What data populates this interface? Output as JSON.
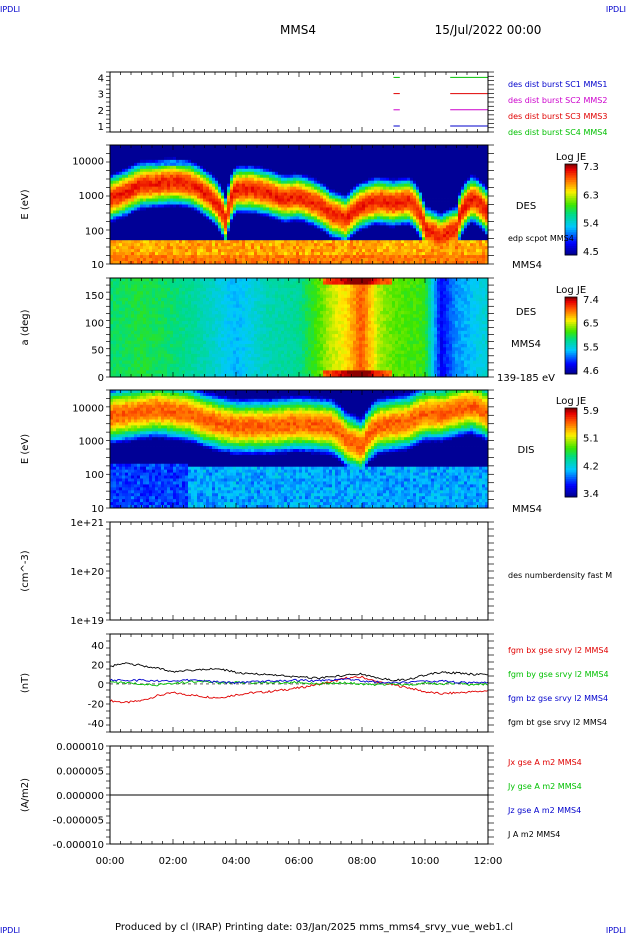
{
  "header": {
    "left_logo": "IPDLI",
    "right_logo": "IPDLI",
    "spacecraft": "MMS4",
    "date": "15/Jul/2022 00:00"
  },
  "footer": {
    "text": "Produced by cl (IRAP)   Printing date: 03/Jan/2025   mms_mms4_srvy_vue_web1.cl",
    "left_logo": "IPDLI",
    "right_logo": "IPDLI"
  },
  "colors": {
    "red": "#e00000",
    "green": "#00c000",
    "blue": "#0000cc",
    "magenta": "#cc00cc",
    "black": "#000000"
  },
  "panels": {
    "burst": {
      "yticks": [
        "4",
        "3",
        "2",
        "1"
      ],
      "legend": [
        {
          "text": "des dist burst SC1 MMS1",
          "color": "#0000cc"
        },
        {
          "text": "des dist burst SC2 MMS2",
          "color": "#cc00cc"
        },
        {
          "text": "des dist burst SC3 MMS3",
          "color": "#e00000"
        },
        {
          "text": "des dist burst SC4 MMS4",
          "color": "#00c000"
        }
      ]
    },
    "des_energy": {
      "ylabel": "E (eV)",
      "yticks": [
        "10000",
        "1000",
        "100",
        "10"
      ],
      "right_labels": [
        "DES",
        "edp scpot MMS4",
        "MMS4"
      ],
      "cbar_title": "Log JE",
      "cbar_ticks": [
        "7.3",
        "6.3",
        "5.4",
        "4.5"
      ]
    },
    "des_pitch": {
      "ylabel": "a (deg)",
      "yticks": [
        "150",
        "100",
        "50",
        "0"
      ],
      "right_labels": [
        "DES",
        "MMS4",
        "139-185 eV"
      ],
      "cbar_title": "Log JE",
      "cbar_ticks": [
        "7.4",
        "6.5",
        "5.5",
        "4.6"
      ]
    },
    "dis_energy": {
      "ylabel": "E (eV)",
      "yticks": [
        "10000",
        "1000",
        "100",
        "10"
      ],
      "right_labels": [
        "DIS",
        "MMS4"
      ],
      "cbar_title": "Log JE",
      "cbar_ticks": [
        "5.9",
        "5.1",
        "4.2",
        "3.4"
      ]
    },
    "density": {
      "ylabel": "(cm^-3)",
      "yticks": [
        "1e+21",
        "1e+20",
        "1e+19"
      ],
      "right_label": "des numberdensity fast M"
    },
    "fgm": {
      "ylabel": "(nT)",
      "yticks": [
        "40",
        "20",
        "0",
        "-20",
        "-40"
      ],
      "legend": [
        {
          "text": "fgm bx gse srvy l2 MMS4",
          "color": "#e00000"
        },
        {
          "text": "fgm by gse srvy l2 MMS4",
          "color": "#00c000"
        },
        {
          "text": "fgm bz gse srvy l2 MMS4",
          "color": "#0000cc"
        },
        {
          "text": "fgm bt gse srvy l2 MMS4",
          "color": "#000000"
        }
      ]
    },
    "current": {
      "ylabel": "(A/m2)",
      "yticks": [
        "0.000010",
        "0.000005",
        "0.000000",
        "-0.000005",
        "-0.000010"
      ],
      "legend": [
        {
          "text": "Jx gse A m2 MMS4",
          "color": "#e00000"
        },
        {
          "text": "Jy gse A m2 MMS4",
          "color": "#00c000"
        },
        {
          "text": "Jz gse A m2 MMS4",
          "color": "#0000cc"
        },
        {
          "text": "J A m2 MMS4",
          "color": "#000000"
        }
      ]
    },
    "xticks": [
      "00:00",
      "02:00",
      "04:00",
      "06:00",
      "08:00",
      "10:00",
      "12:00"
    ]
  },
  "chart_data": [
    {
      "type": "scatter",
      "title": "des dist burst",
      "x_unit": "hours UT",
      "series": [
        {
          "name": "des dist burst SC1 MMS1",
          "y": 1,
          "x_segments": [
            [
              9.0,
              9.2
            ],
            [
              10.8,
              12.0
            ]
          ]
        },
        {
          "name": "des dist burst SC2 MMS2",
          "y": 2,
          "x_segments": [
            [
              9.0,
              9.2
            ],
            [
              10.8,
              12.0
            ]
          ]
        },
        {
          "name": "des dist burst SC3 MMS3",
          "y": 3,
          "x_segments": [
            [
              9.0,
              9.2
            ],
            [
              10.8,
              12.0
            ]
          ]
        },
        {
          "name": "des dist burst SC4 MMS4",
          "y": 4,
          "x_segments": [
            [
              9.0,
              9.2
            ],
            [
              10.8,
              12.0
            ]
          ]
        }
      ],
      "ylim": [
        0.7,
        4.3
      ]
    },
    {
      "type": "heatmap",
      "title": "DES",
      "ylabel": "E (eV)",
      "yscale": "log",
      "ylim": [
        10,
        30000
      ],
      "xlim_hours": [
        0,
        12
      ],
      "colorbar": {
        "title": "Log JE",
        "min": 4.5,
        "max": 7.3
      },
      "profile_hours": [
        0,
        0.5,
        1.0,
        1.5,
        2.0,
        2.5,
        3.0,
        3.5,
        3.7,
        4.0,
        4.5,
        5.0,
        5.5,
        6.0,
        6.5,
        7.0,
        7.5,
        8.0,
        8.5,
        9.0,
        9.5,
        10.0,
        10.5,
        11.0,
        11.5,
        12.0
      ],
      "peak_energy_eV": [
        800,
        1200,
        2000,
        2200,
        2500,
        2200,
        1200,
        400,
        150,
        1500,
        1500,
        1200,
        800,
        900,
        600,
        300,
        200,
        500,
        700,
        600,
        700,
        100,
        60,
        100,
        800,
        300
      ]
    },
    {
      "type": "heatmap",
      "title": "DES 139-185 eV",
      "ylabel": "a (deg)",
      "ylim": [
        0,
        180
      ],
      "xlim_hours": [
        0,
        12
      ],
      "colorbar": {
        "title": "Log JE",
        "min": 4.6,
        "max": 7.4
      },
      "profile_hours": [
        0,
        1,
        2,
        3,
        4,
        5,
        6,
        7,
        7.5,
        8,
        8.5,
        9,
        10,
        10.5,
        11,
        12
      ],
      "level": [
        5.9,
        6.0,
        5.9,
        5.7,
        5.4,
        5.7,
        5.8,
        6.4,
        6.6,
        7.0,
        6.4,
        6.2,
        6.1,
        4.9,
        5.3,
        5.6
      ]
    },
    {
      "type": "heatmap",
      "title": "DIS",
      "ylabel": "E (eV)",
      "yscale": "log",
      "ylim": [
        10,
        30000
      ],
      "xlim_hours": [
        0,
        12
      ],
      "colorbar": {
        "title": "Log JE",
        "min": 3.4,
        "max": 5.9
      },
      "profile_hours": [
        0,
        0.5,
        1.0,
        1.5,
        2.0,
        2.5,
        3.0,
        3.5,
        4.0,
        5.0,
        6.0,
        7.0,
        7.5,
        8.0,
        8.5,
        9.0,
        9.5,
        10.0,
        10.5,
        11.0,
        11.5,
        12.0
      ],
      "peak_energy_eV": [
        5000,
        6000,
        7000,
        8000,
        7000,
        6000,
        4000,
        3000,
        2500,
        2500,
        3000,
        2500,
        1000,
        600,
        2500,
        3000,
        3500,
        6000,
        6000,
        8000,
        10000,
        6000
      ]
    },
    {
      "type": "line",
      "title": "des numberdensity fast M",
      "ylabel": "(cm^-3)",
      "yscale": "log",
      "ylim": [
        1e+19,
        1e+21
      ],
      "series": []
    },
    {
      "type": "line",
      "ylabel": "(nT)",
      "ylim": [
        -50,
        50
      ],
      "x_hours": [
        0,
        0.5,
        1.0,
        1.5,
        2.0,
        2.5,
        3.0,
        3.5,
        4.0,
        4.5,
        5.0,
        5.5,
        6.0,
        6.5,
        7.0,
        7.5,
        8.0,
        8.5,
        9.0,
        9.5,
        10.0,
        10.5,
        11.0,
        11.5,
        12.0
      ],
      "series": [
        {
          "name": "fgm bx gse srvy l2 MMS4",
          "color": "#e00000",
          "values": [
            -17,
            -19,
            -17,
            -12,
            -9,
            -11,
            -13,
            -14,
            -11,
            -9,
            -8,
            -6,
            -4,
            -1,
            2,
            6,
            7,
            2,
            -1,
            -4,
            -8,
            -10,
            -9,
            -8,
            -7
          ]
        },
        {
          "name": "fgm by gse srvy l2 MMS4",
          "color": "#00c000",
          "values": [
            2,
            1,
            0,
            -1,
            1,
            2,
            3,
            1,
            2,
            1,
            2,
            1,
            2,
            0,
            1,
            1,
            0,
            -1,
            0,
            -1,
            1,
            0,
            1,
            -1,
            0
          ]
        },
        {
          "name": "fgm bz gse srvy l2 MMS4",
          "color": "#0000cc",
          "values": [
            4,
            3,
            4,
            3,
            3,
            4,
            3,
            2,
            1,
            2,
            3,
            3,
            4,
            3,
            4,
            5,
            3,
            2,
            1,
            2,
            3,
            3,
            2,
            1,
            2
          ]
        },
        {
          "name": "fgm bt gse srvy l2 MMS4",
          "color": "#000000",
          "values": [
            18,
            21,
            19,
            16,
            12,
            14,
            15,
            15,
            12,
            10,
            10,
            8,
            7,
            6,
            7,
            9,
            10,
            6,
            4,
            5,
            9,
            12,
            11,
            10,
            10
          ]
        }
      ]
    },
    {
      "type": "line",
      "ylabel": "(A/m2)",
      "ylim": [
        -1e-05,
        1e-05
      ],
      "x_hours": [
        0,
        2,
        4,
        6,
        8,
        10,
        12
      ],
      "series": [
        {
          "name": "J A m2 MMS4",
          "color": "#000000",
          "values": [
            0,
            0,
            0,
            0,
            0,
            0,
            0
          ]
        }
      ]
    }
  ]
}
